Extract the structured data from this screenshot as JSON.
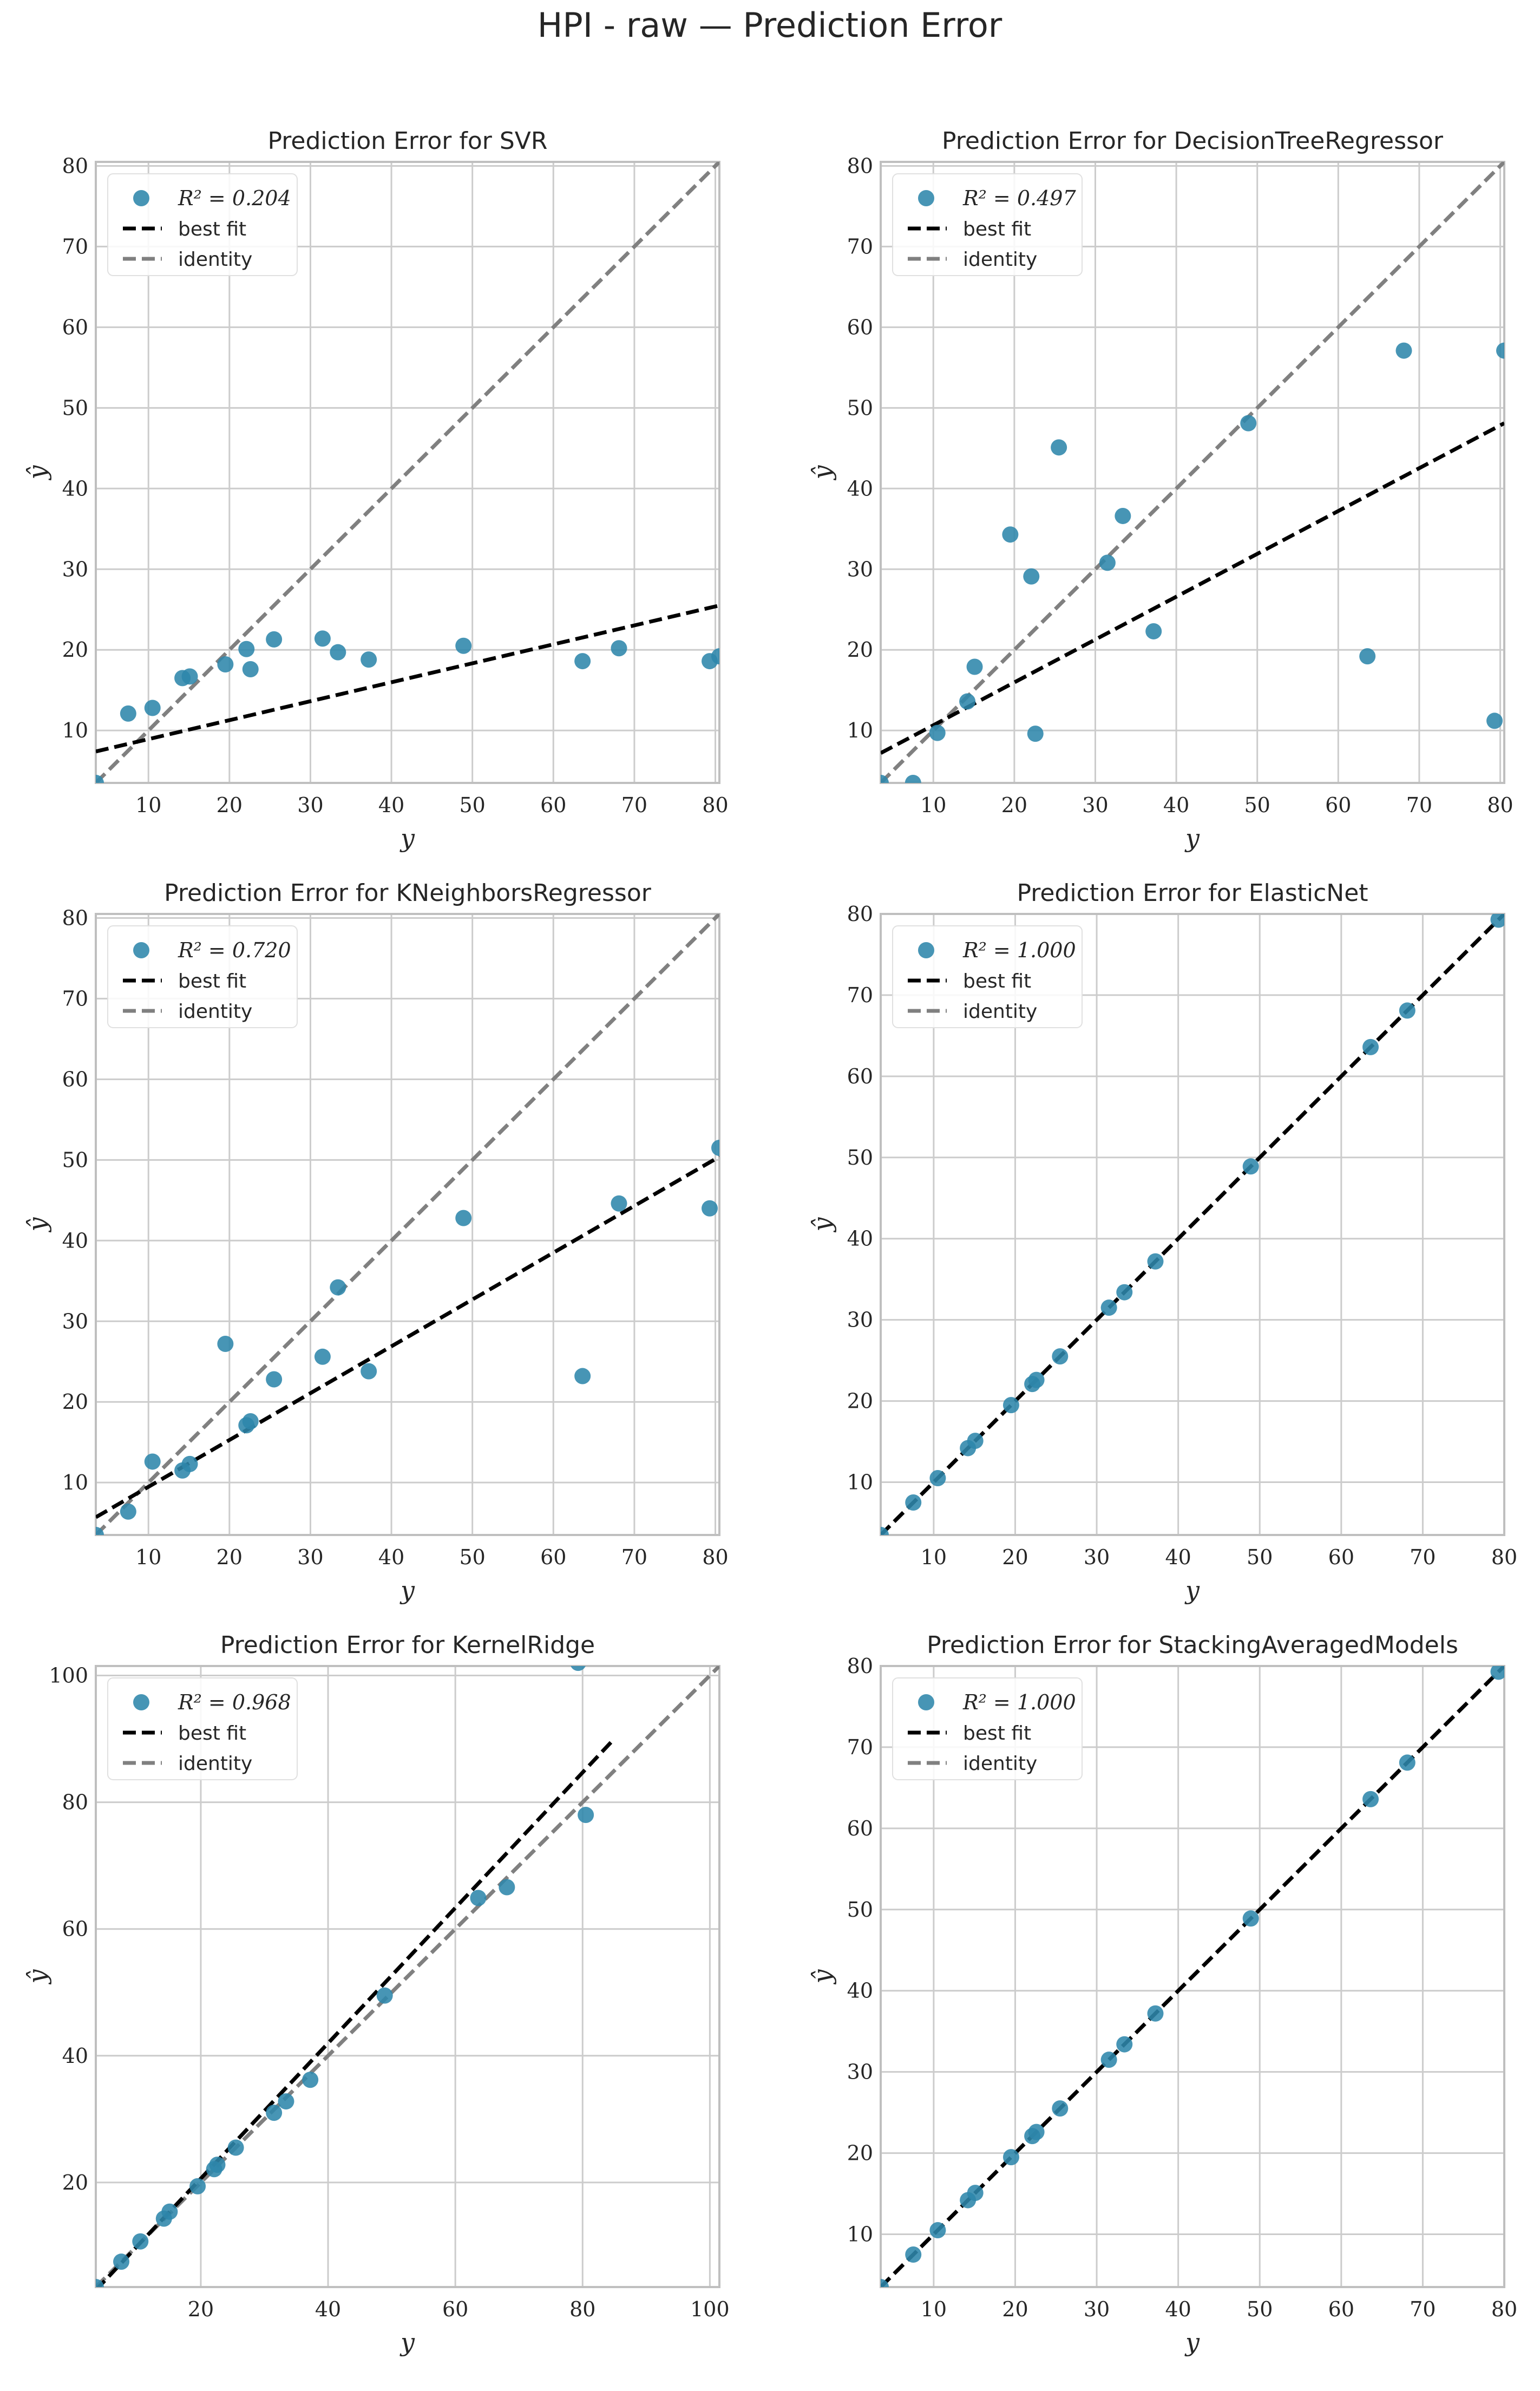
{
  "figure_title": "HPI - raw — Prediction Error",
  "colors": {
    "point": "#2e86ab",
    "best_fit": "#000000",
    "identity": "#808080",
    "grid": "#cccccc",
    "spine": "#bfbfbf",
    "text": "#262626"
  },
  "legend_labels": {
    "best_fit": "best fit",
    "identity": "identity"
  },
  "chart_data": [
    {
      "type": "scatter",
      "title": "Prediction Error for SVR",
      "xlabel": "y",
      "ylabel": "ŷ",
      "xlim": [
        3.5,
        80.5
      ],
      "ylim": [
        3.5,
        80.5
      ],
      "xticks": [
        10,
        20,
        30,
        40,
        50,
        60,
        70,
        80
      ],
      "yticks": [
        10,
        20,
        30,
        40,
        50,
        60,
        70,
        80
      ],
      "r2_label": "R² = 0.204",
      "best_fit": [
        [
          3.5,
          7.4
        ],
        [
          80.5,
          25.5
        ]
      ],
      "identity": [
        [
          3.5,
          3.5
        ],
        [
          80.5,
          80.5
        ]
      ],
      "points": [
        [
          3.5,
          3.5
        ],
        [
          7.5,
          12.1
        ],
        [
          10.5,
          12.8
        ],
        [
          14.2,
          16.5
        ],
        [
          15.1,
          16.7
        ],
        [
          19.5,
          18.2
        ],
        [
          22.1,
          20.1
        ],
        [
          22.6,
          17.6
        ],
        [
          25.5,
          21.3
        ],
        [
          31.5,
          21.4
        ],
        [
          33.4,
          19.7
        ],
        [
          37.2,
          18.8
        ],
        [
          48.9,
          20.5
        ],
        [
          63.6,
          18.6
        ],
        [
          68.1,
          20.2
        ],
        [
          79.3,
          18.6
        ],
        [
          80.5,
          19.2
        ]
      ]
    },
    {
      "type": "scatter",
      "title": "Prediction Error for DecisionTreeRegressor",
      "xlabel": "y",
      "ylabel": "ŷ",
      "xlim": [
        3.5,
        80.5
      ],
      "ylim": [
        3.5,
        80.5
      ],
      "xticks": [
        10,
        20,
        30,
        40,
        50,
        60,
        70,
        80
      ],
      "yticks": [
        10,
        20,
        30,
        40,
        50,
        60,
        70,
        80
      ],
      "r2_label": "R² = 0.497",
      "best_fit": [
        [
          3.5,
          7.2
        ],
        [
          80.5,
          48.1
        ]
      ],
      "identity": [
        [
          3.5,
          3.5
        ],
        [
          80.5,
          80.5
        ]
      ],
      "points": [
        [
          3.5,
          3.5
        ],
        [
          7.5,
          3.5
        ],
        [
          10.5,
          9.7
        ],
        [
          14.2,
          13.6
        ],
        [
          15.1,
          17.9
        ],
        [
          19.5,
          34.3
        ],
        [
          22.1,
          29.1
        ],
        [
          22.6,
          9.6
        ],
        [
          25.5,
          45.1
        ],
        [
          31.5,
          30.8
        ],
        [
          33.4,
          36.6
        ],
        [
          37.2,
          22.3
        ],
        [
          48.9,
          48.1
        ],
        [
          63.6,
          19.2
        ],
        [
          68.1,
          57.1
        ],
        [
          79.3,
          11.2
        ],
        [
          80.5,
          57.1
        ]
      ]
    },
    {
      "type": "scatter",
      "title": "Prediction Error for KNeighborsRegressor",
      "xlabel": "y",
      "ylabel": "ŷ",
      "xlim": [
        3.5,
        80.5
      ],
      "ylim": [
        3.5,
        80.5
      ],
      "xticks": [
        10,
        20,
        30,
        40,
        50,
        60,
        70,
        80
      ],
      "yticks": [
        10,
        20,
        30,
        40,
        50,
        60,
        70,
        80
      ],
      "r2_label": "R² = 0.720",
      "best_fit": [
        [
          3.5,
          5.7
        ],
        [
          80.5,
          50.4
        ]
      ],
      "identity": [
        [
          3.5,
          3.5
        ],
        [
          80.5,
          80.5
        ]
      ],
      "points": [
        [
          3.5,
          3.5
        ],
        [
          7.5,
          6.4
        ],
        [
          10.5,
          12.6
        ],
        [
          14.2,
          11.5
        ],
        [
          15.1,
          12.3
        ],
        [
          19.5,
          27.2
        ],
        [
          22.1,
          17.1
        ],
        [
          22.6,
          17.6
        ],
        [
          25.5,
          22.8
        ],
        [
          31.5,
          25.6
        ],
        [
          33.4,
          34.2
        ],
        [
          37.2,
          23.8
        ],
        [
          48.9,
          42.8
        ],
        [
          63.6,
          23.2
        ],
        [
          68.1,
          44.6
        ],
        [
          79.3,
          44.0
        ],
        [
          80.5,
          51.5
        ]
      ]
    },
    {
      "type": "scatter",
      "title": "Prediction Error for ElasticNet",
      "xlabel": "y",
      "ylabel": "ŷ",
      "xlim": [
        3.5,
        80.0
      ],
      "ylim": [
        3.5,
        80.0
      ],
      "xticks": [
        10,
        20,
        30,
        40,
        50,
        60,
        70,
        80
      ],
      "yticks": [
        10,
        20,
        30,
        40,
        50,
        60,
        70,
        80
      ],
      "r2_label": "R² = 1.000",
      "best_fit": [
        [
          3.5,
          3.5
        ],
        [
          80.0,
          80.0
        ]
      ],
      "identity": [
        [
          3.5,
          3.5
        ],
        [
          80.0,
          80.0
        ]
      ],
      "points": [
        [
          3.5,
          3.5
        ],
        [
          7.5,
          7.5
        ],
        [
          10.5,
          10.5
        ],
        [
          14.2,
          14.2
        ],
        [
          15.1,
          15.1
        ],
        [
          19.5,
          19.5
        ],
        [
          22.1,
          22.1
        ],
        [
          22.6,
          22.6
        ],
        [
          25.5,
          25.5
        ],
        [
          31.5,
          31.5
        ],
        [
          33.4,
          33.4
        ],
        [
          37.2,
          37.2
        ],
        [
          48.9,
          48.9
        ],
        [
          63.6,
          63.6
        ],
        [
          68.1,
          68.1
        ],
        [
          79.3,
          79.3
        ]
      ]
    },
    {
      "type": "scatter",
      "title": "Prediction Error for KernelRidge",
      "xlabel": "y",
      "ylabel": "ŷ",
      "xlim": [
        3.5,
        101.5
      ],
      "ylim": [
        3.5,
        101.5
      ],
      "xticks": [
        20,
        40,
        60,
        80,
        100
      ],
      "yticks": [
        20,
        40,
        60,
        80,
        100
      ],
      "r2_label": "R² = 0.968",
      "best_fit": [
        [
          3.5,
          3.0
        ],
        [
          84.5,
          89.5
        ]
      ],
      "identity": [
        [
          3.5,
          3.5
        ],
        [
          101.5,
          101.5
        ]
      ],
      "points": [
        [
          3.5,
          3.5
        ],
        [
          7.5,
          7.5
        ],
        [
          10.5,
          10.7
        ],
        [
          14.2,
          14.3
        ],
        [
          15.1,
          15.4
        ],
        [
          19.5,
          19.4
        ],
        [
          22.1,
          22.1
        ],
        [
          22.6,
          22.8
        ],
        [
          25.5,
          25.5
        ],
        [
          31.5,
          31.0
        ],
        [
          33.4,
          32.8
        ],
        [
          37.2,
          36.2
        ],
        [
          48.9,
          49.5
        ],
        [
          63.6,
          64.9
        ],
        [
          68.1,
          66.6
        ],
        [
          79.3,
          102.0
        ],
        [
          80.5,
          78.0
        ]
      ]
    },
    {
      "type": "scatter",
      "title": "Prediction Error for StackingAveragedModels",
      "xlabel": "y",
      "ylabel": "ŷ",
      "xlim": [
        3.5,
        80.0
      ],
      "ylim": [
        3.5,
        80.0
      ],
      "xticks": [
        10,
        20,
        30,
        40,
        50,
        60,
        70,
        80
      ],
      "yticks": [
        10,
        20,
        30,
        40,
        50,
        60,
        70,
        80
      ],
      "r2_label": "R² = 1.000",
      "best_fit": [
        [
          3.5,
          3.5
        ],
        [
          80.0,
          80.0
        ]
      ],
      "identity": [
        [
          3.5,
          3.5
        ],
        [
          80.0,
          80.0
        ]
      ],
      "points": [
        [
          3.5,
          3.5
        ],
        [
          7.5,
          7.5
        ],
        [
          10.5,
          10.5
        ],
        [
          14.2,
          14.2
        ],
        [
          15.1,
          15.1
        ],
        [
          19.5,
          19.5
        ],
        [
          22.1,
          22.1
        ],
        [
          22.6,
          22.6
        ],
        [
          25.5,
          25.5
        ],
        [
          31.5,
          31.5
        ],
        [
          33.4,
          33.4
        ],
        [
          37.2,
          37.2
        ],
        [
          48.9,
          48.9
        ],
        [
          63.6,
          63.6
        ],
        [
          68.1,
          68.1
        ],
        [
          79.3,
          79.3
        ]
      ]
    }
  ]
}
